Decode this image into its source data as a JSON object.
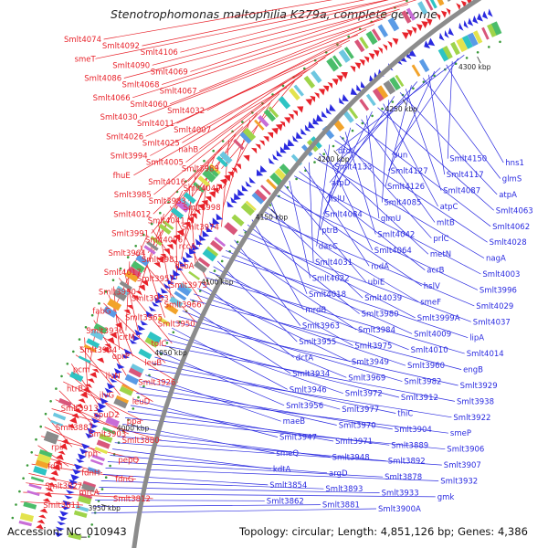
{
  "title": "Stenotrophomonas maltophilia K279a, complete genome",
  "accession": "Accession: NC_010943",
  "summary": "Topology: circular; Length: 4,851,126 bp; Genes: 4,386",
  "colors": {
    "forward_strand": "#e8232b",
    "reverse_strand": "#2a2ae0",
    "backbone": "#8c8c8c",
    "kbp_tick": "#333333",
    "dots": "#3a9a3a"
  },
  "kbp_labels": [
    "4300 kbp",
    "4250 kbp",
    "4200 kbp",
    "4150 kbp",
    "4100 kbp",
    "4050 kbp",
    "4000 kbp",
    "3950 kbp"
  ],
  "left_labels": [
    "Smlt4074",
    "Smlt4092",
    "Smlt4106",
    "smeT",
    "Smlt4090",
    "Smlt4069",
    "Smlt4086",
    "Smlt4068",
    "Smlt4067",
    "Smlt4066",
    "Smlt4060",
    "Smlt4032",
    "Smlt4030",
    "Smlt4011",
    "Smlt4007",
    "Smlt4026",
    "Smlt4025",
    "nahB",
    "Smlt3994",
    "Smlt4005",
    "Smlt3989",
    "fhuE",
    "Smlt4016",
    "Smlt4049",
    "Smlt3985",
    "Smlt3983",
    "Smlt3998",
    "Smlt4012",
    "Smlt4041",
    "Smlt3974",
    "Smlt3991",
    "Smlt4006",
    "rccA",
    "Smlt3964",
    "Smlt3981",
    "dsbA",
    "Smlt4017",
    "Smlt3957",
    "Smlt3973",
    "Smlt3990",
    "Smlt3953",
    "Smlt3966",
    "fabG",
    "Smlt3965",
    "Smlt3950",
    "Smlt3936",
    "citM",
    "tolC",
    "Smlt3944",
    "oprP",
    "leuB",
    "pcm",
    "ilvN",
    "Smlt3926",
    "htrB",
    "ilvG",
    "leuD",
    "Smlt3913",
    "opuD2",
    "ppa",
    "Smlt3887",
    "Smlt3903",
    "Smlt3880",
    "rpiA",
    "rph",
    "pepQ",
    "fdnI",
    "fdnH",
    "fdnG",
    "Smlt3827",
    "mrcA",
    "Smlt3812",
    "Smlt3811"
  ],
  "right_labels": [
    "dtd",
    "sun",
    "Smlt4150",
    "hns1",
    "Smlt4133",
    "Smlt4127",
    "Smlt4117",
    "glmS",
    "atpD",
    "Smlt4126",
    "Smlt4087",
    "atpA",
    "hslU",
    "Smlt4085",
    "atpC",
    "Smlt4063",
    "Smlt4084",
    "glmU",
    "mltB",
    "Smlt4062",
    "ptrB",
    "Smlt4042",
    "prlC",
    "Smlt4028",
    "dacC",
    "Smlt4064",
    "metN",
    "nagA",
    "Smlt4031",
    "rodA",
    "acrB",
    "Smlt4003",
    "Smlt4022",
    "ubiE",
    "hslV",
    "Smlt3996",
    "Smlt4018",
    "Smlt4039",
    "smeF",
    "Smlt4029",
    "mrdB",
    "Smlt3980",
    "Smlt3999A",
    "Smlt4037",
    "Smlt3963",
    "Smlt3984",
    "Smlt4009",
    "lipA",
    "Smlt3955",
    "Smlt3975",
    "Smlt4010",
    "Smlt4014",
    "dctA",
    "Smlt3949",
    "Smlt3960",
    "engB",
    "Smlt3934",
    "Smlt3969",
    "Smlt3982",
    "Smlt3929",
    "Smlt3946",
    "Smlt3972",
    "Smlt3912",
    "Smlt3938",
    "Smlt3956",
    "Smlt3977",
    "thiC",
    "Smlt3922",
    "maeB",
    "Smlt3970",
    "Smlt3904",
    "smeP",
    "Smlt3947",
    "Smlt3971",
    "Smlt3889",
    "Smlt3906",
    "smeQ",
    "Smlt3948",
    "Smlt3892",
    "Smlt3907",
    "kdtA",
    "argD",
    "Smlt3878",
    "Smlt3932",
    "Smlt3854",
    "Smlt3893",
    "Smlt3933",
    "gmk",
    "Smlt3862",
    "Smlt3881",
    "Smlt3900A"
  ]
}
